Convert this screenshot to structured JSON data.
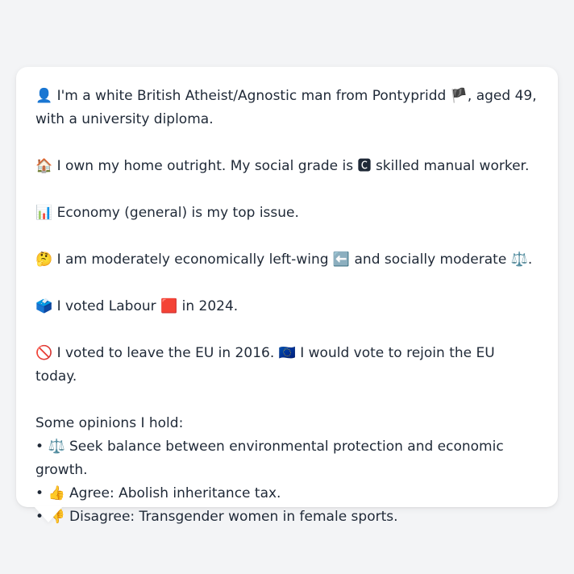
{
  "profile": {
    "identity": {
      "emoji": "👤",
      "text_1": "I'm a white British Atheist/Agnostic man from Pontypridd",
      "flag": "🏴",
      "text_2": ", aged 49,",
      "text_3": "with a university diploma."
    },
    "home": {
      "emoji": "🏠",
      "text_1": "I own my home outright. My social grade is",
      "grade_emoji": "🅲",
      "text_2": "skilled manual worker."
    },
    "issue": {
      "emoji": "📊",
      "text": "Economy (general) is my top issue."
    },
    "position": {
      "emoji": "🤔",
      "text_1": "I am moderately economically left-wing",
      "left_emoji": "⬅️",
      "text_2": "and socially moderate",
      "balance_emoji": "⚖️",
      "text_3": "."
    },
    "vote": {
      "emoji": "🗳️",
      "text_1": "I voted Labour",
      "party_emoji": "🟥",
      "text_2": "in 2024."
    },
    "eu": {
      "emoji": "🚫",
      "text_1": "I voted to leave the EU in 2016.",
      "eu_emoji": "🇪🇺",
      "text_2": "I would vote to rejoin the EU today."
    },
    "opinions_heading": "Some opinions I hold:",
    "opinions": [
      {
        "bullet": "•",
        "emoji": "⚖️",
        "text": "Seek balance between environmental protection and economic growth."
      },
      {
        "bullet": "•",
        "emoji": "👍",
        "text": "Agree: Abolish inheritance tax."
      },
      {
        "bullet": "•",
        "emoji": "👎",
        "text": "Disagree: Transgender women in female sports."
      }
    ]
  },
  "colors": {
    "background": "#f3f4f6",
    "card": "#ffffff",
    "text": "#1f2937"
  }
}
